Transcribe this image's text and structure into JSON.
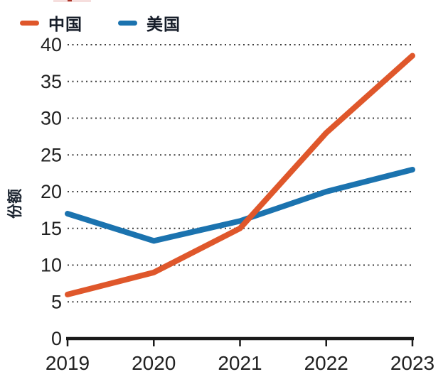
{
  "legend": {
    "items": [
      {
        "label": "中国",
        "color": "#df572b"
      },
      {
        "label": "美国",
        "color": "#1b73af"
      }
    ]
  },
  "chart_data": {
    "type": "line",
    "x": [
      "2019",
      "2020",
      "2021",
      "2022",
      "2023"
    ],
    "series": [
      {
        "name": "中国",
        "color": "#df572b",
        "values": [
          6,
          9,
          15,
          28,
          38.5
        ]
      },
      {
        "name": "美国",
        "color": "#1b73af",
        "values": [
          17,
          13.3,
          16,
          20,
          23
        ]
      }
    ],
    "title": "",
    "xlabel": "",
    "ylabel": "份额",
    "ylim": [
      0,
      40
    ],
    "y_ticks": [
      0,
      5,
      10,
      15,
      20,
      25,
      30,
      35,
      40
    ],
    "grid": "horizontal-dotted",
    "legend_position": "top-left",
    "axis_color": "#1a1a1a",
    "grid_color": "#3d3d3d",
    "tick_label_color": "#212121",
    "line_width": 8
  }
}
